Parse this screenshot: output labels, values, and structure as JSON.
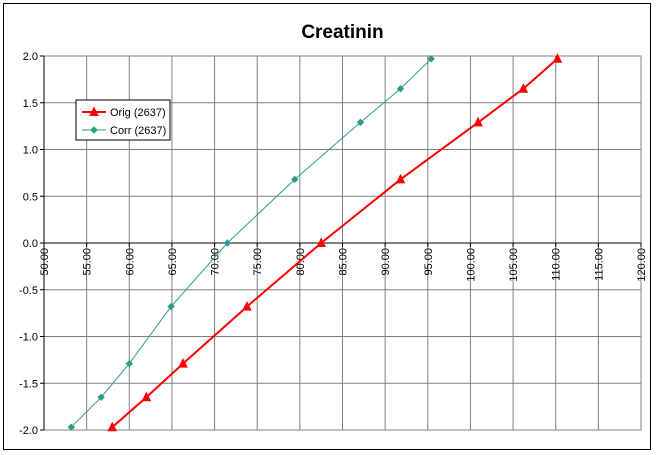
{
  "chart_data": {
    "type": "line",
    "title": "Creatinin",
    "xlabel": "",
    "ylabel": "",
    "xlim": [
      50,
      120
    ],
    "ylim": [
      -2.0,
      2.0
    ],
    "x_ticks": [
      50,
      55,
      60,
      65,
      70,
      75,
      80,
      85,
      90,
      95,
      100,
      105,
      110,
      115,
      120
    ],
    "x_tick_labels": [
      "50.00",
      "55.00",
      "60.00",
      "65.00",
      "70.00",
      "75.00",
      "80.00",
      "85.00",
      "90.00",
      "95.00",
      "100.00",
      "105.00",
      "110.00",
      "115.00",
      "120.00"
    ],
    "y_ticks": [
      2.0,
      1.5,
      1.0,
      0.5,
      0.0,
      -0.5,
      -1.0,
      -1.5,
      -2.0
    ],
    "y_tick_labels": [
      "2.0",
      "1.5",
      "1.0",
      "0.5",
      "0.0",
      "-0.5",
      "-1.0",
      "-1.5",
      "-2.0"
    ],
    "grid": true,
    "legend_position": "upper-left",
    "series": [
      {
        "name": "Orig (2637)",
        "color": "#ff0000",
        "marker": "triangle",
        "x": [
          58.0,
          62.0,
          66.3,
          73.8,
          82.5,
          91.8,
          100.9,
          106.2,
          110.2
        ],
        "y": [
          -1.97,
          -1.65,
          -1.29,
          -0.68,
          0.0,
          0.68,
          1.29,
          1.65,
          1.97
        ]
      },
      {
        "name": "Corr (2637)",
        "color": "#2e9b8a",
        "marker": "diamond",
        "x": [
          53.2,
          56.7,
          60.0,
          64.9,
          71.5,
          79.4,
          87.1,
          91.8,
          95.4
        ],
        "y": [
          -1.97,
          -1.65,
          -1.29,
          -0.68,
          0.0,
          0.68,
          1.29,
          1.65,
          1.97
        ]
      }
    ]
  }
}
